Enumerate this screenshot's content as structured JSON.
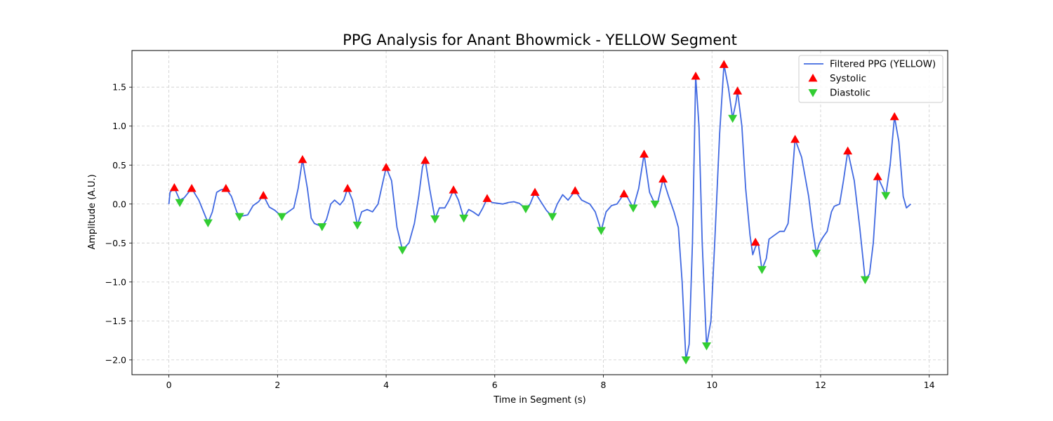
{
  "chart_data": {
    "type": "line",
    "title": "PPG Analysis for Anant Bhowmick - YELLOW Segment",
    "xlabel": "Time in Segment (s)",
    "ylabel": "Amplitude (A.U.)",
    "xlim": [
      -0.68,
      14.34
    ],
    "ylim": [
      -2.19,
      1.97
    ],
    "xticks": [
      0,
      2,
      4,
      6,
      8,
      10,
      12,
      14
    ],
    "yticks": [
      -2.0,
      -1.5,
      -1.0,
      -0.5,
      0.0,
      0.5,
      1.0,
      1.5
    ],
    "grid": true,
    "legend_position": "top-right",
    "colors": {
      "line": "#4169e1",
      "systolic": "#ff0000",
      "diastolic": "#32cd32",
      "grid": "#cccccc"
    },
    "series": [
      {
        "name": "Filtered PPG (YELLOW)",
        "kind": "line",
        "points": [
          [
            0.0,
            0.0
          ],
          [
            0.02,
            0.15
          ],
          [
            0.1,
            0.21
          ],
          [
            0.2,
            0.05
          ],
          [
            0.28,
            0.08
          ],
          [
            0.42,
            0.2
          ],
          [
            0.55,
            0.05
          ],
          [
            0.65,
            -0.12
          ],
          [
            0.72,
            -0.24
          ],
          [
            0.8,
            -0.1
          ],
          [
            0.88,
            0.15
          ],
          [
            0.95,
            0.18
          ],
          [
            1.05,
            0.2
          ],
          [
            1.15,
            0.1
          ],
          [
            1.25,
            -0.1
          ],
          [
            1.3,
            -0.16
          ],
          [
            1.45,
            -0.14
          ],
          [
            1.55,
            -0.02
          ],
          [
            1.65,
            0.03
          ],
          [
            1.74,
            0.11
          ],
          [
            1.85,
            -0.04
          ],
          [
            1.95,
            -0.08
          ],
          [
            2.08,
            -0.16
          ],
          [
            2.2,
            -0.1
          ],
          [
            2.3,
            -0.05
          ],
          [
            2.38,
            0.2
          ],
          [
            2.46,
            0.57
          ],
          [
            2.55,
            0.2
          ],
          [
            2.62,
            -0.18
          ],
          [
            2.68,
            -0.25
          ],
          [
            2.82,
            -0.29
          ],
          [
            2.9,
            -0.2
          ],
          [
            2.98,
            0.0
          ],
          [
            3.05,
            0.05
          ],
          [
            3.15,
            -0.01
          ],
          [
            3.22,
            0.05
          ],
          [
            3.29,
            0.2
          ],
          [
            3.38,
            0.05
          ],
          [
            3.47,
            -0.27
          ],
          [
            3.55,
            -0.1
          ],
          [
            3.65,
            -0.07
          ],
          [
            3.75,
            -0.1
          ],
          [
            3.85,
            0.0
          ],
          [
            3.93,
            0.25
          ],
          [
            4.0,
            0.47
          ],
          [
            4.1,
            0.3
          ],
          [
            4.2,
            -0.3
          ],
          [
            4.3,
            -0.59
          ],
          [
            4.42,
            -0.5
          ],
          [
            4.52,
            -0.25
          ],
          [
            4.6,
            0.1
          ],
          [
            4.67,
            0.48
          ],
          [
            4.72,
            0.56
          ],
          [
            4.8,
            0.2
          ],
          [
            4.9,
            -0.19
          ],
          [
            4.98,
            -0.05
          ],
          [
            5.08,
            -0.05
          ],
          [
            5.16,
            0.05
          ],
          [
            5.24,
            0.18
          ],
          [
            5.33,
            0.05
          ],
          [
            5.43,
            -0.18
          ],
          [
            5.52,
            -0.07
          ],
          [
            5.6,
            -0.1
          ],
          [
            5.7,
            -0.15
          ],
          [
            5.78,
            -0.05
          ],
          [
            5.86,
            0.07
          ],
          [
            5.95,
            0.02
          ],
          [
            6.05,
            0.01
          ],
          [
            6.15,
            0.0
          ],
          [
            6.25,
            0.02
          ],
          [
            6.35,
            0.03
          ],
          [
            6.45,
            0.01
          ],
          [
            6.57,
            -0.06
          ],
          [
            6.65,
            0.0
          ],
          [
            6.74,
            0.15
          ],
          [
            6.85,
            0.03
          ],
          [
            6.95,
            -0.08
          ],
          [
            7.06,
            -0.16
          ],
          [
            7.15,
            0.0
          ],
          [
            7.25,
            0.12
          ],
          [
            7.35,
            0.05
          ],
          [
            7.48,
            0.17
          ],
          [
            7.6,
            0.05
          ],
          [
            7.75,
            0.0
          ],
          [
            7.85,
            -0.1
          ],
          [
            7.96,
            -0.34
          ],
          [
            8.05,
            -0.1
          ],
          [
            8.15,
            -0.02
          ],
          [
            8.25,
            0.0
          ],
          [
            8.38,
            0.13
          ],
          [
            8.45,
            0.08
          ],
          [
            8.55,
            -0.05
          ],
          [
            8.65,
            0.2
          ],
          [
            8.75,
            0.64
          ],
          [
            8.85,
            0.15
          ],
          [
            8.95,
            0.0
          ],
          [
            9.0,
            0.02
          ],
          [
            9.1,
            0.32
          ],
          [
            9.2,
            0.1
          ],
          [
            9.3,
            -0.1
          ],
          [
            9.38,
            -0.3
          ],
          [
            9.45,
            -1.0
          ],
          [
            9.52,
            -2.0
          ],
          [
            9.58,
            -1.8
          ],
          [
            9.64,
            -0.5
          ],
          [
            9.7,
            1.64
          ],
          [
            9.76,
            1.0
          ],
          [
            9.82,
            -0.5
          ],
          [
            9.9,
            -1.82
          ],
          [
            9.98,
            -1.5
          ],
          [
            10.05,
            -0.5
          ],
          [
            10.14,
            0.9
          ],
          [
            10.22,
            1.79
          ],
          [
            10.3,
            1.5
          ],
          [
            10.38,
            1.1
          ],
          [
            10.44,
            1.3
          ],
          [
            10.47,
            1.45
          ],
          [
            10.55,
            1.0
          ],
          [
            10.62,
            0.2
          ],
          [
            10.7,
            -0.4
          ],
          [
            10.75,
            -0.65
          ],
          [
            10.8,
            -0.55
          ],
          [
            10.85,
            -0.5
          ],
          [
            10.92,
            -0.84
          ],
          [
            11.0,
            -0.7
          ],
          [
            11.05,
            -0.45
          ],
          [
            11.15,
            -0.4
          ],
          [
            11.25,
            -0.35
          ],
          [
            11.33,
            -0.35
          ],
          [
            11.4,
            -0.25
          ],
          [
            11.47,
            0.3
          ],
          [
            11.53,
            0.83
          ],
          [
            11.65,
            0.6
          ],
          [
            11.78,
            0.1
          ],
          [
            11.85,
            -0.3
          ],
          [
            11.92,
            -0.63
          ],
          [
            11.98,
            -0.5
          ],
          [
            12.05,
            -0.42
          ],
          [
            12.12,
            -0.35
          ],
          [
            12.2,
            -0.1
          ],
          [
            12.25,
            -0.03
          ],
          [
            12.35,
            0.0
          ],
          [
            12.42,
            0.3
          ],
          [
            12.5,
            0.68
          ],
          [
            12.62,
            0.3
          ],
          [
            12.72,
            -0.3
          ],
          [
            12.82,
            -0.97
          ],
          [
            12.9,
            -0.9
          ],
          [
            12.97,
            -0.5
          ],
          [
            13.05,
            0.35
          ],
          [
            13.15,
            0.2
          ],
          [
            13.2,
            0.11
          ],
          [
            13.28,
            0.5
          ],
          [
            13.36,
            1.12
          ],
          [
            13.44,
            0.8
          ],
          [
            13.52,
            0.1
          ],
          [
            13.58,
            -0.05
          ],
          [
            13.66,
            0.0
          ]
        ]
      },
      {
        "name": "Systolic",
        "kind": "marker",
        "marker": "triangle-up",
        "points": [
          [
            0.1,
            0.21
          ],
          [
            0.42,
            0.2
          ],
          [
            1.05,
            0.2
          ],
          [
            1.74,
            0.11
          ],
          [
            2.46,
            0.57
          ],
          [
            3.29,
            0.2
          ],
          [
            4.0,
            0.47
          ],
          [
            4.72,
            0.56
          ],
          [
            5.24,
            0.18
          ],
          [
            5.86,
            0.07
          ],
          [
            6.74,
            0.15
          ],
          [
            7.48,
            0.17
          ],
          [
            8.38,
            0.13
          ],
          [
            8.75,
            0.64
          ],
          [
            9.1,
            0.32
          ],
          [
            9.7,
            1.64
          ],
          [
            10.22,
            1.79
          ],
          [
            10.47,
            1.45
          ],
          [
            10.8,
            -0.49
          ],
          [
            11.53,
            0.83
          ],
          [
            12.5,
            0.68
          ],
          [
            13.05,
            0.35
          ],
          [
            13.36,
            1.12
          ]
        ]
      },
      {
        "name": "Diastolic",
        "kind": "marker",
        "marker": "triangle-down",
        "points": [
          [
            0.2,
            0.02
          ],
          [
            0.72,
            -0.24
          ],
          [
            1.3,
            -0.16
          ],
          [
            2.08,
            -0.16
          ],
          [
            2.82,
            -0.29
          ],
          [
            3.47,
            -0.27
          ],
          [
            4.3,
            -0.59
          ],
          [
            4.9,
            -0.19
          ],
          [
            5.43,
            -0.18
          ],
          [
            6.57,
            -0.06
          ],
          [
            7.06,
            -0.16
          ],
          [
            7.96,
            -0.34
          ],
          [
            8.55,
            -0.05
          ],
          [
            8.95,
            0.0
          ],
          [
            9.52,
            -2.0
          ],
          [
            9.9,
            -1.82
          ],
          [
            10.38,
            1.1
          ],
          [
            10.92,
            -0.84
          ],
          [
            11.92,
            -0.63
          ],
          [
            12.82,
            -0.97
          ],
          [
            13.2,
            0.11
          ]
        ]
      }
    ]
  }
}
